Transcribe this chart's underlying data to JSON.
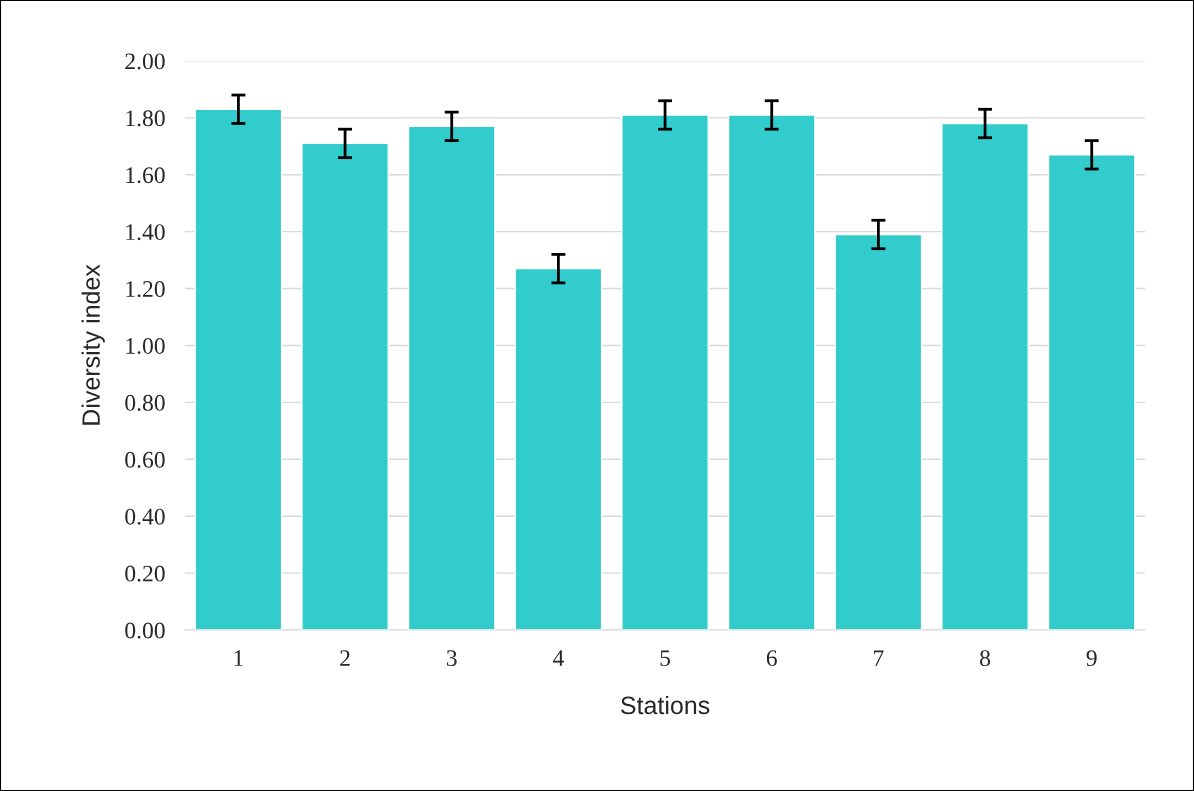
{
  "chart_data": {
    "type": "bar",
    "xlabel": "Stations",
    "ylabel": "Diversity index",
    "categories": [
      "1",
      "2",
      "3",
      "4",
      "5",
      "6",
      "7",
      "8",
      "9"
    ],
    "values": [
      1.83,
      1.71,
      1.77,
      1.27,
      1.81,
      1.81,
      1.39,
      1.78,
      1.67
    ],
    "errors": [
      0.05,
      0.05,
      0.05,
      0.05,
      0.05,
      0.05,
      0.05,
      0.05,
      0.05
    ],
    "color": "#33cccc",
    "ylim": [
      0,
      2
    ],
    "yticks": [
      {
        "value": 0,
        "label": "0.00"
      },
      {
        "value": 0.2,
        "label": "0.20"
      },
      {
        "value": 0.4,
        "label": "0.40"
      },
      {
        "value": 0.6,
        "label": "0.60"
      },
      {
        "value": 0.8,
        "label": "0.80"
      },
      {
        "value": 1.0,
        "label": "1.00"
      },
      {
        "value": 1.2,
        "label": "1.20"
      },
      {
        "value": 1.4,
        "label": "1.40"
      },
      {
        "value": 1.6,
        "label": "1.60"
      },
      {
        "value": 1.8,
        "label": "1.80"
      },
      {
        "value": 2.0,
        "label": "2.00"
      }
    ],
    "grid": "y",
    "legend": false
  }
}
